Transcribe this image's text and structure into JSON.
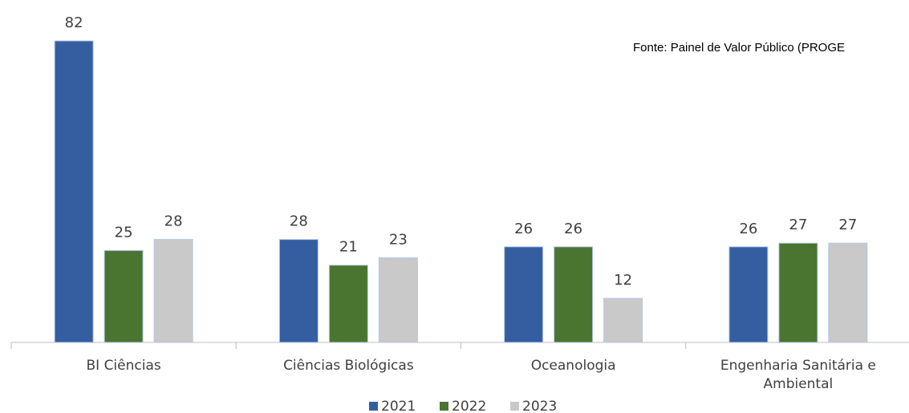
{
  "chart_data": {
    "type": "bar",
    "source": "Fonte: Painel de Valor Público (PROGE",
    "categories": [
      "BI Ciências",
      "Ciências Biológicas",
      "Oceanologia",
      "Engenharia Sanitária e Ambiental"
    ],
    "series": [
      {
        "name": "2021",
        "color": "#355ea1",
        "values": [
          82,
          28,
          26,
          26
        ]
      },
      {
        "name": "2022",
        "color": "#4a7530",
        "values": [
          25,
          21,
          26,
          27
        ]
      },
      {
        "name": "2023",
        "color": "#c9c9c9",
        "values": [
          28,
          23,
          12,
          27
        ]
      }
    ],
    "legend": "bottom"
  }
}
